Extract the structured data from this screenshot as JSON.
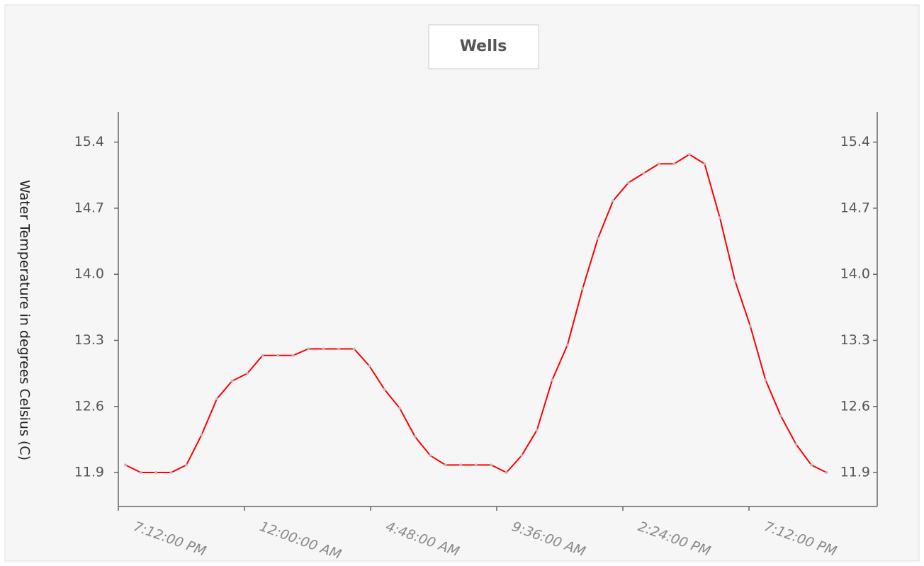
{
  "chart_data": {
    "type": "line",
    "title": "Wells",
    "y_label": "Water Temperature in degrees Celsius (C)",
    "x": [
      0.27,
      0.85,
      1.43,
      2.01,
      2.59,
      3.17,
      3.75,
      4.33,
      4.91,
      5.49,
      6.07,
      6.65,
      7.23,
      7.81,
      8.39,
      8.97,
      9.55,
      10.13,
      10.71,
      11.29,
      11.87,
      12.45,
      13.03,
      13.61,
      14.19,
      14.77,
      15.35,
      15.93,
      16.51,
      17.09,
      17.67,
      18.25,
      18.83,
      19.41,
      19.99,
      20.57,
      21.15,
      21.73,
      22.31,
      22.89,
      23.47,
      24.05,
      24.63,
      25.21,
      25.79,
      26.37,
      26.95
    ],
    "series": [
      {
        "name": "Wells",
        "color": "#ff0000",
        "values": [
          11.98,
          11.9,
          11.9,
          11.9,
          11.98,
          12.3,
          12.68,
          12.87,
          12.95,
          13.14,
          13.14,
          13.14,
          13.21,
          13.21,
          13.21,
          13.21,
          13.03,
          12.78,
          12.58,
          12.28,
          12.08,
          11.98,
          11.98,
          11.98,
          11.98,
          11.9,
          12.08,
          12.35,
          12.88,
          13.25,
          13.85,
          14.38,
          14.78,
          14.97,
          15.07,
          15.17,
          15.17,
          15.27,
          15.17,
          14.6,
          13.93,
          13.45,
          12.88,
          12.5,
          12.2,
          11.98,
          11.9
        ]
      }
    ],
    "xlim": [
      0,
      28.88
    ],
    "xticks": [
      {
        "value": 0,
        "label": "7:12:00 PM"
      },
      {
        "value": 4.8,
        "label": "12:00:00 AM"
      },
      {
        "value": 9.6,
        "label": "4:48:00 AM"
      },
      {
        "value": 14.4,
        "label": "9:36:00 AM"
      },
      {
        "value": 19.2,
        "label": "2:24:00 PM"
      },
      {
        "value": 24,
        "label": "7:12:00 PM"
      }
    ],
    "ylim": [
      11.54,
      15.72
    ],
    "yticks": [
      11.9,
      12.6,
      {
        "value": 13.3,
        "label": "13.3"
      },
      {
        "value": 14.0,
        "label": "14.0"
      },
      14.7,
      15.4
    ]
  }
}
